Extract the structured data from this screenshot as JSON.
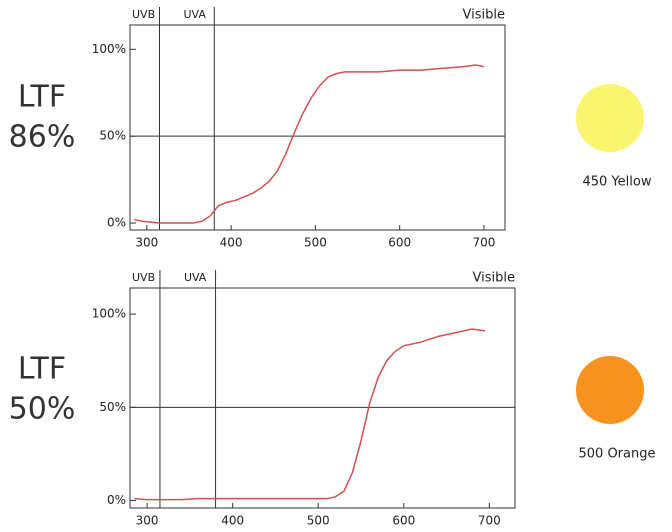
{
  "chart_data": [
    {
      "type": "line",
      "label_lines": [
        "LTF",
        "86%"
      ],
      "region_labels": [
        "UVB",
        "UVA",
        "Visible"
      ],
      "vlines": [
        315,
        380
      ],
      "hline": 50,
      "x": [
        285,
        295,
        305,
        315,
        325,
        335,
        345,
        355,
        365,
        375,
        385,
        395,
        405,
        415,
        425,
        435,
        445,
        455,
        465,
        475,
        485,
        495,
        505,
        515,
        525,
        535,
        550,
        575,
        600,
        625,
        650,
        675,
        690,
        700
      ],
      "series": [
        {
          "color": "#d2504f",
          "values": [
            2,
            1,
            0.5,
            0,
            0,
            0,
            0,
            0,
            1,
            4,
            10,
            12,
            13,
            15,
            17,
            20,
            24,
            30,
            40,
            52,
            63,
            72,
            79,
            84,
            86,
            87,
            87,
            87,
            88,
            88,
            89,
            90,
            91,
            90
          ]
        }
      ],
      "xlim": [
        280,
        725
      ],
      "xticks": [
        300,
        400,
        500,
        600,
        700
      ],
      "ylim": [
        -4,
        114
      ],
      "yticks": [
        {
          "value": 0,
          "label": "0%"
        },
        {
          "value": 50,
          "label": "50%"
        },
        {
          "value": 100,
          "label": "100%"
        }
      ],
      "swatch": {
        "color": "#fbf56e",
        "label": "450 Yellow"
      }
    },
    {
      "type": "line",
      "label_lines": [
        "LTF",
        "50%"
      ],
      "region_labels": [
        "UVB",
        "UVA",
        "Visible"
      ],
      "vlines": [
        315,
        380
      ],
      "hline": 50,
      "x": [
        285,
        300,
        320,
        340,
        360,
        380,
        400,
        420,
        440,
        460,
        480,
        500,
        510,
        520,
        530,
        540,
        550,
        560,
        570,
        580,
        590,
        600,
        620,
        640,
        660,
        680,
        695
      ],
      "series": [
        {
          "color": "#d2504f",
          "values": [
            1,
            0.5,
            0.5,
            0.5,
            1,
            1,
            1,
            1,
            1,
            1,
            1,
            1,
            1,
            2,
            5,
            15,
            32,
            52,
            66,
            75,
            80,
            83,
            85,
            88,
            90,
            92,
            91
          ]
        }
      ],
      "xlim": [
        280,
        730
      ],
      "xticks": [
        300,
        400,
        500,
        600,
        700
      ],
      "ylim": [
        -4,
        114
      ],
      "yticks": [
        {
          "value": 0,
          "label": "0%"
        },
        {
          "value": 50,
          "label": "50%"
        },
        {
          "value": 100,
          "label": "100%"
        }
      ],
      "swatch": {
        "color": "#f7921e",
        "label": "500 Orange"
      }
    }
  ]
}
